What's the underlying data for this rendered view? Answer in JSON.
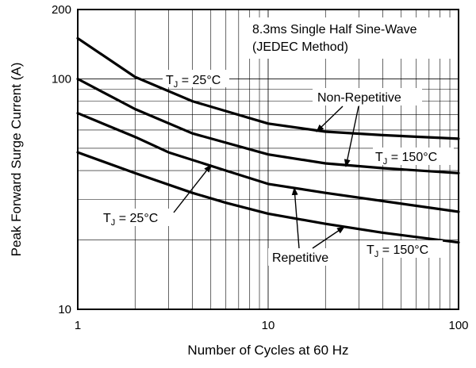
{
  "chart_data": {
    "type": "line",
    "title": "",
    "xlabel": "Number of Cycles at 60 Hz",
    "ylabel": "Peak Forward Surge Current (A)",
    "x_scale": "log",
    "y_scale": "log",
    "xlim": [
      1,
      100
    ],
    "ylim": [
      10,
      200
    ],
    "x_ticks": [
      "1",
      "10",
      "100"
    ],
    "y_ticks": [
      "10",
      "100",
      "200"
    ],
    "grid": true,
    "series": [
      {
        "name": "",
        "x": [
          1,
          2,
          4,
          10,
          20,
          40,
          100
        ],
        "y": [
          150,
          102,
          80,
          64,
          59,
          57,
          55
        ]
      },
      {
        "name": "",
        "x": [
          1,
          2,
          4,
          10,
          20,
          40,
          100
        ],
        "y": [
          100,
          74,
          58,
          47,
          43,
          41,
          39
        ]
      },
      {
        "name": "",
        "x": [
          1,
          2,
          3,
          6,
          10,
          20,
          40,
          100
        ],
        "y": [
          71,
          56,
          48,
          40,
          35,
          32,
          29.5,
          26.5
        ]
      },
      {
        "name": "",
        "x": [
          1,
          2,
          4,
          6,
          10,
          20,
          40,
          100
        ],
        "y": [
          48,
          39,
          32,
          29,
          26,
          23.5,
          21.5,
          19.5
        ]
      }
    ],
    "annotations": {
      "method_line1": "8.3ms Single Half Sine-Wave",
      "method_line2": "(JEDEC Method)",
      "tj_label": "T",
      "tj_sub": "J",
      "tj_25": " = 25°C",
      "tj_150": " = 150°C",
      "non_repetitive": "Non-Repetitive",
      "repetitive": "Repetitive"
    }
  }
}
